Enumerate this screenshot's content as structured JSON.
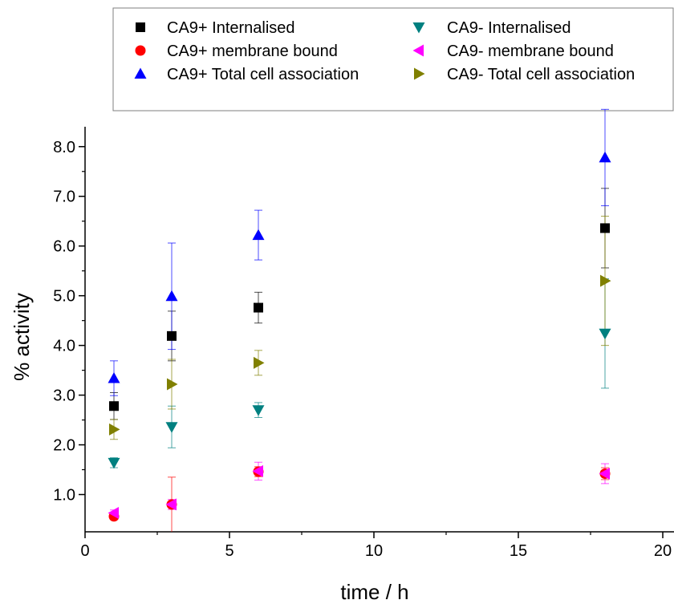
{
  "chart_data": {
    "type": "scatter",
    "xlabel": "time / h",
    "ylabel": "% activity",
    "xlim": [
      0,
      20
    ],
    "ylim": [
      0.25,
      8.4
    ],
    "x_ticks": [
      0,
      5,
      10,
      15,
      20
    ],
    "x_tick_labels": [
      "0",
      "5",
      "10",
      "15",
      "20"
    ],
    "y_ticks": [
      1,
      2,
      3,
      4,
      5,
      6,
      7,
      8
    ],
    "y_tick_labels": [
      "1.0",
      "2.0",
      "3.0",
      "4.0",
      "5.0",
      "6.0",
      "7.0",
      "8.0"
    ],
    "grid": false,
    "legend_position": "top",
    "series": [
      {
        "name": "CA9+ Internalised",
        "marker": "square",
        "color": "#000000",
        "x": [
          1,
          3,
          6,
          18
        ],
        "y": [
          2.78,
          4.19,
          4.76,
          6.36
        ],
        "err": [
          0.27,
          0.5,
          0.31,
          0.8
        ]
      },
      {
        "name": "CA9+ membrane bound",
        "marker": "circle",
        "color": "#ff0000",
        "x": [
          1,
          3,
          6,
          18
        ],
        "y": [
          0.56,
          0.8,
          1.46,
          1.42
        ],
        "err": [
          0.06,
          0.55,
          0.1,
          0.12
        ]
      },
      {
        "name": "CA9+ Total cell association",
        "marker": "triangle-up",
        "color": "#0000ff",
        "x": [
          1,
          3,
          6,
          18
        ],
        "y": [
          3.34,
          4.99,
          6.22,
          7.78
        ],
        "err": [
          0.35,
          1.07,
          0.5,
          0.97
        ]
      },
      {
        "name": "CA9- Internalised",
        "marker": "triangle-down",
        "color": "#008080",
        "x": [
          1,
          3,
          6,
          18
        ],
        "y": [
          1.64,
          2.36,
          2.7,
          4.24
        ],
        "err": [
          0.1,
          0.42,
          0.15,
          1.1
        ]
      },
      {
        "name": "CA9- membrane bound",
        "marker": "triangle-left",
        "color": "#ff00ff",
        "x": [
          1,
          3,
          6,
          18
        ],
        "y": [
          0.63,
          0.8,
          1.47,
          1.42
        ],
        "err": [
          0.06,
          0.1,
          0.18,
          0.2
        ]
      },
      {
        "name": "CA9- Total cell association",
        "marker": "triangle-right",
        "color": "#808000",
        "x": [
          1,
          3,
          6,
          18
        ],
        "y": [
          2.31,
          3.22,
          3.65,
          5.3
        ],
        "err": [
          0.2,
          0.5,
          0.25,
          1.3
        ]
      }
    ]
  }
}
